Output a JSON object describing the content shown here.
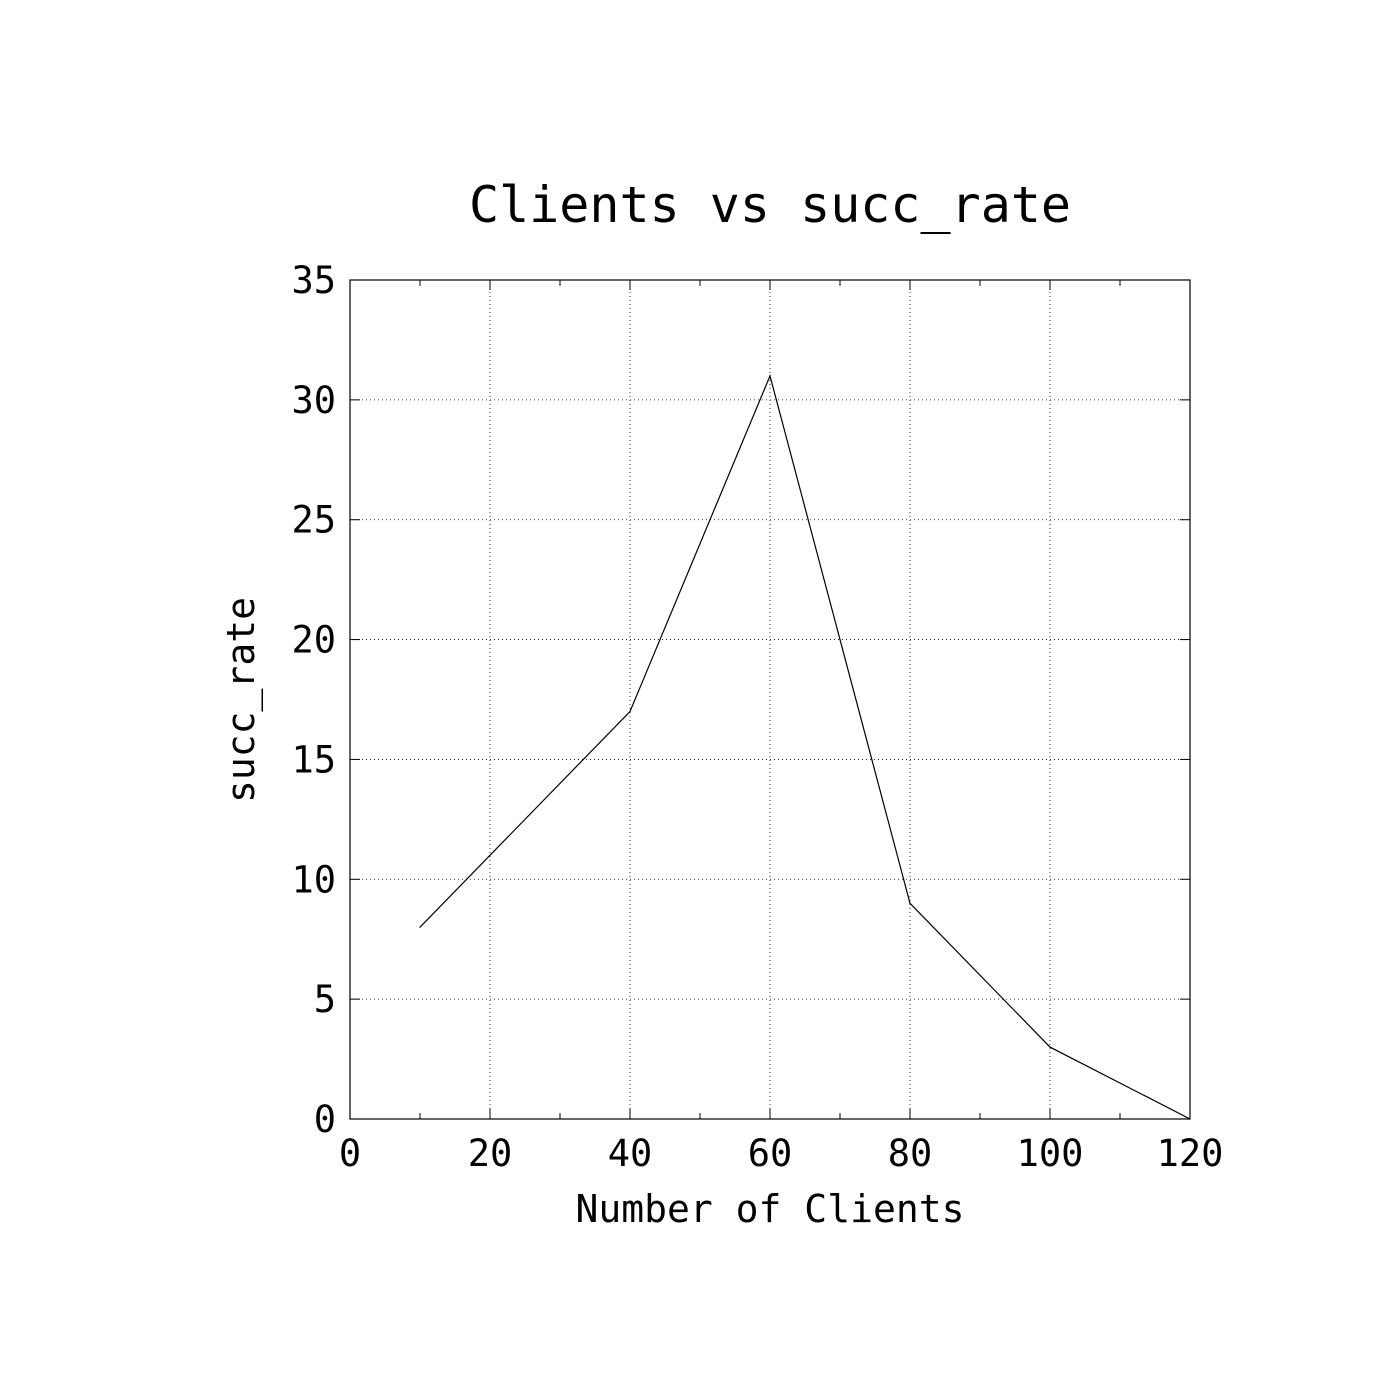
{
  "chart_data": {
    "type": "line",
    "title": "Clients vs succ_rate",
    "xlabel": "Number of Clients",
    "ylabel": "succ_rate",
    "xlim": [
      0,
      120
    ],
    "ylim": [
      0,
      35
    ],
    "xticks": [
      0,
      20,
      40,
      60,
      80,
      100,
      120
    ],
    "yticks": [
      0,
      5,
      10,
      15,
      20,
      25,
      30,
      35
    ],
    "xticklabels": [
      "0",
      "20",
      "40",
      "60",
      "80",
      "100",
      "120"
    ],
    "yticklabels": [
      "0",
      "5",
      "10",
      "15",
      "20",
      "25",
      "30",
      "35"
    ],
    "x_minor_ticks": [
      10,
      30,
      50,
      70,
      90,
      110
    ],
    "grid": true,
    "legend": "none",
    "line_color": "#000000",
    "series": [
      {
        "x": [
          10,
          40,
          60,
          80,
          100,
          120
        ],
        "values": [
          8,
          17,
          31,
          9,
          3,
          0
        ]
      }
    ]
  }
}
